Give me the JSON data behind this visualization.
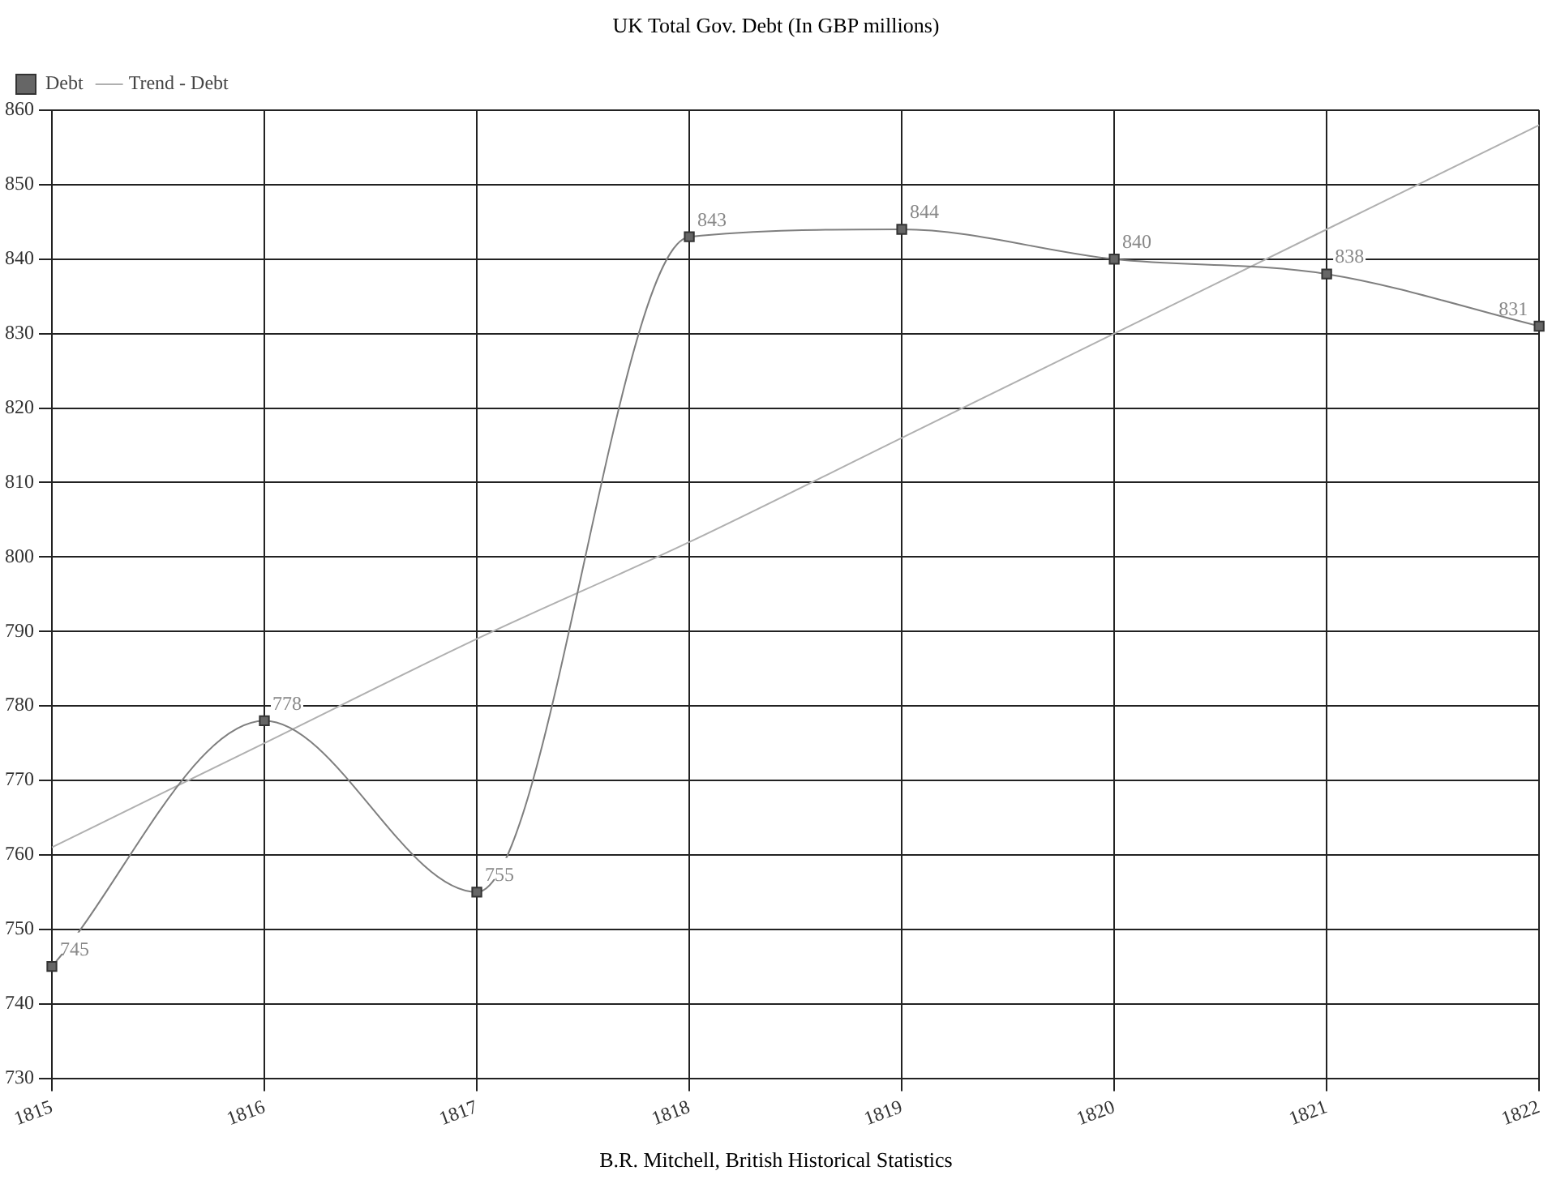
{
  "chart_data": {
    "type": "line",
    "title": "UK Total Gov. Debt (In GBP millions)",
    "categories": [
      "1815",
      "1816",
      "1817",
      "1818",
      "1819",
      "1820",
      "1821",
      "1822"
    ],
    "series": [
      {
        "name": "Debt",
        "color": "#7f7f7f",
        "values": [
          745,
          778,
          755,
          843,
          844,
          840,
          838,
          831
        ],
        "marker": "square",
        "value_labels": [
          "745",
          "778",
          "755",
          "843",
          "844",
          "840",
          "838",
          "831"
        ]
      },
      {
        "name": "Trend - Debt",
        "color": "#b0b0b0",
        "values": [
          761,
          775,
          789,
          802,
          816,
          830,
          844,
          858
        ],
        "marker": "none"
      }
    ],
    "ylim": [
      730,
      860
    ],
    "yticks": [
      730,
      740,
      750,
      760,
      770,
      780,
      790,
      800,
      810,
      820,
      830,
      840,
      850,
      860
    ],
    "grid": true,
    "legend": "top left",
    "annotations": [
      "B.R. Mitchell, British Historical Statistics"
    ]
  }
}
